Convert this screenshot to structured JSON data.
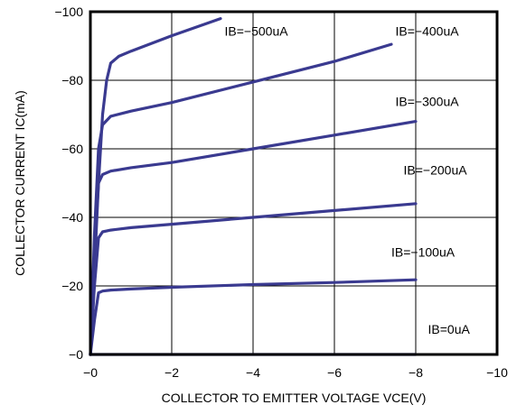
{
  "chart_data": {
    "type": "line",
    "title": "",
    "xlabel": "COLLECTOR TO EMITTER VOLTAGE VCE(V)",
    "ylabel": "COLLECTOR CURRENT IC(mA)",
    "xlim": [
      0,
      -10
    ],
    "ylim": [
      0,
      -100
    ],
    "x_ticks": [
      {
        "value": 0,
        "label": "−0"
      },
      {
        "value": -2,
        "label": "−2"
      },
      {
        "value": -4,
        "label": "−4"
      },
      {
        "value": -6,
        "label": "−6"
      },
      {
        "value": -8,
        "label": "−8"
      },
      {
        "value": -10,
        "label": "−10"
      }
    ],
    "y_ticks": [
      {
        "value": 0,
        "label": "−0"
      },
      {
        "value": -20,
        "label": "−20"
      },
      {
        "value": -40,
        "label": "−40"
      },
      {
        "value": -60,
        "label": "−60"
      },
      {
        "value": -80,
        "label": "−80"
      },
      {
        "value": -100,
        "label": "−100"
      }
    ],
    "grid": true,
    "line_color": "#3a3a90",
    "series": [
      {
        "name": "IB=−500uA",
        "label_at": [
          -3.3,
          -93
        ],
        "x": [
          0,
          -0.2,
          -0.3,
          -0.4,
          -0.5,
          -0.7,
          -1.0,
          -2.0,
          -3.2
        ],
        "y": [
          0,
          -50,
          -70,
          -80,
          -85,
          -87,
          -88.5,
          -93,
          -98
        ]
      },
      {
        "name": "IB=−400uA",
        "label_at": [
          -7.5,
          -93
        ],
        "x": [
          0,
          -0.1,
          -0.2,
          -0.3,
          -0.5,
          -1.0,
          -2.0,
          -4.0,
          -6.0,
          -7.4
        ],
        "y": [
          0,
          -35,
          -60,
          -67,
          -69.5,
          -71,
          -73.5,
          -79.5,
          -85.5,
          -90.5
        ]
      },
      {
        "name": "IB=−300uA",
        "label_at": [
          -7.5,
          -72.5
        ],
        "x": [
          0,
          -0.1,
          -0.2,
          -0.3,
          -0.5,
          -1.0,
          -2.0,
          -4.0,
          -6.0,
          -8.0
        ],
        "y": [
          0,
          -30,
          -50,
          -52.5,
          -53.5,
          -54.5,
          -56,
          -60,
          -64,
          -68
        ]
      },
      {
        "name": "IB=−200uA",
        "label_at": [
          -7.7,
          -52.5
        ],
        "x": [
          0,
          -0.1,
          -0.2,
          -0.3,
          -0.5,
          -1.0,
          -2.0,
          -4.0,
          -6.0,
          -8.0
        ],
        "y": [
          0,
          -20,
          -34,
          -35.8,
          -36.3,
          -37,
          -38,
          -40,
          -42,
          -44
        ]
      },
      {
        "name": "IB=−100uA",
        "label_at": [
          -7.4,
          -28.5
        ],
        "x": [
          0,
          -0.1,
          -0.2,
          -0.3,
          -0.5,
          -1.0,
          -2.0,
          -4.0,
          -6.0,
          -8.0
        ],
        "y": [
          0,
          -10,
          -18,
          -18.5,
          -18.8,
          -19.1,
          -19.6,
          -20.4,
          -21,
          -21.8
        ]
      },
      {
        "name": "IB=0uA",
        "label_at": [
          -8.3,
          -6
        ],
        "x": [
          0,
          -8.0
        ],
        "y": [
          0,
          0
        ]
      }
    ]
  }
}
